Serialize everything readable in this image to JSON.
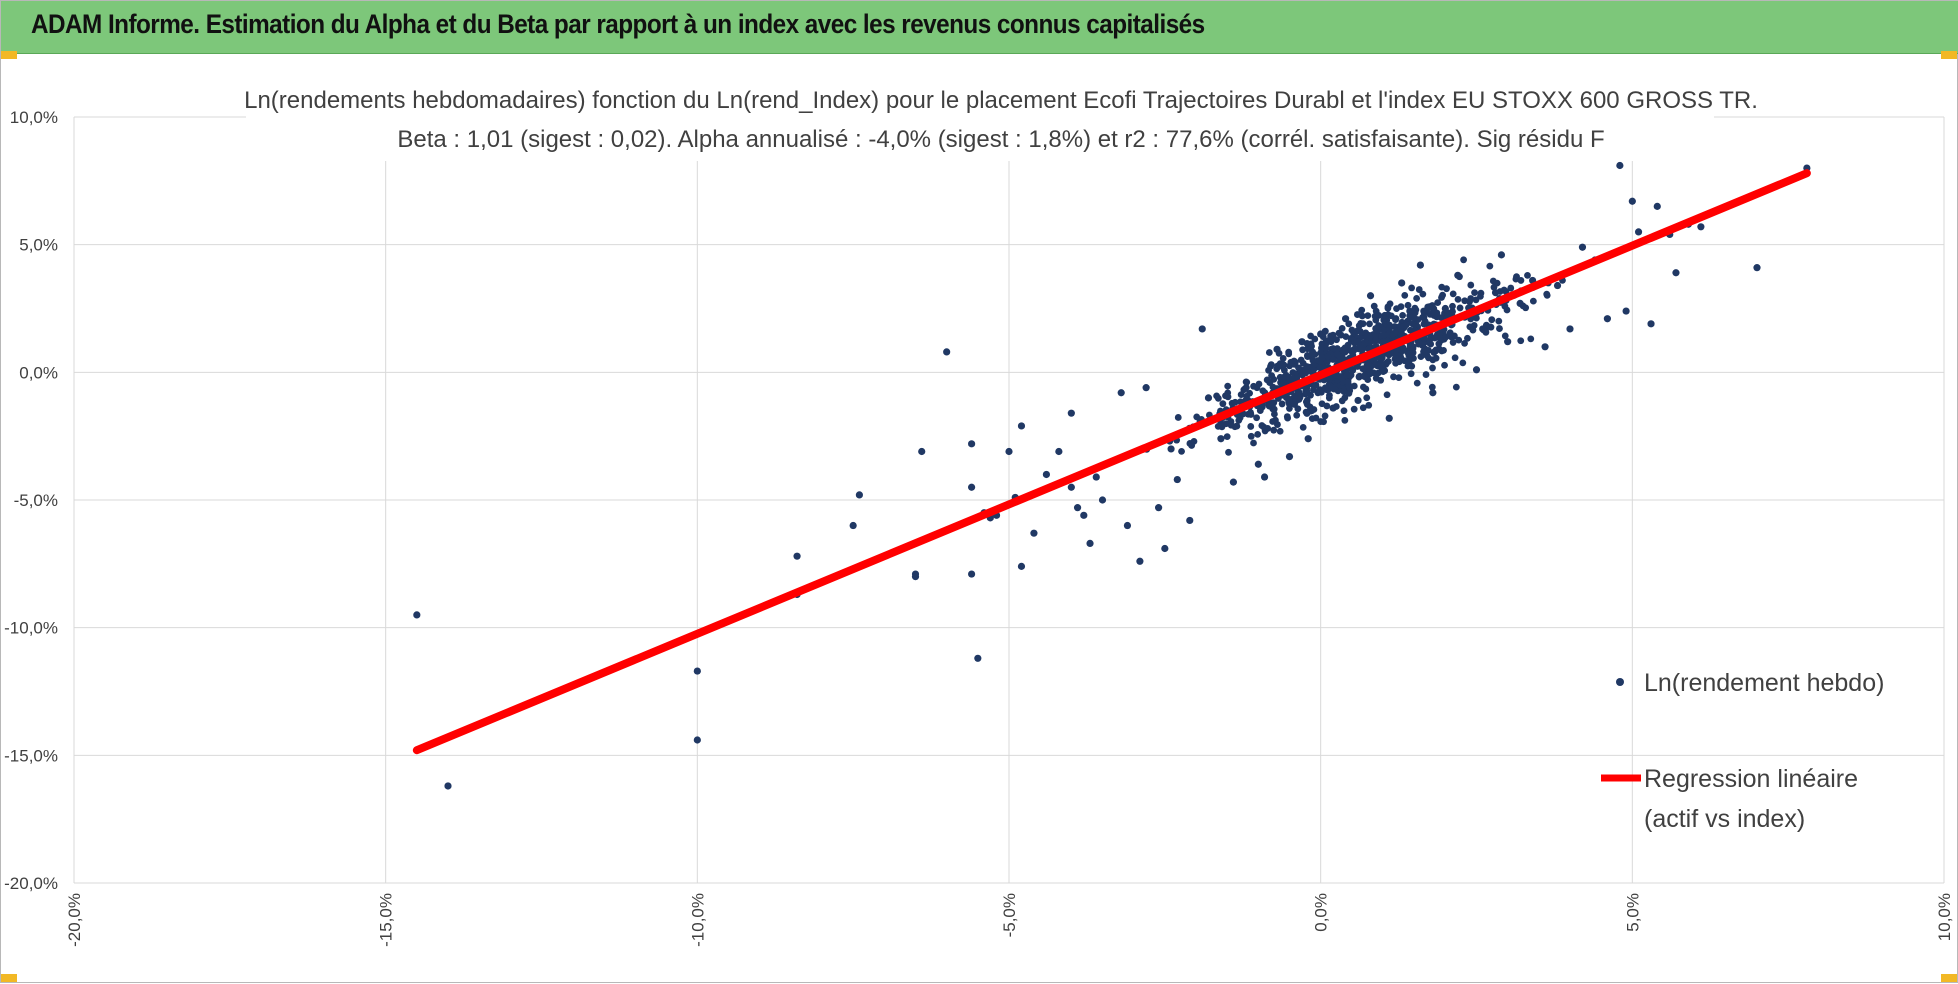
{
  "header": {
    "title": "ADAM Informe. Estimation du Alpha et du Beta par rapport à un index avec les revenus connus capitalisés"
  },
  "colors": {
    "header_bg": "#7dc77a",
    "points": "#203864",
    "regression": "#ff0000",
    "grid": "#d9d9d9",
    "handles": "#f2b825"
  },
  "chart_data": {
    "type": "scatter",
    "title_line1": "Ln(rendements hebdomadaires) fonction du Ln(rend_Index) pour le placement Ecofi Trajectoires Durabl et l'index EU STOXX 600 GROSS TR.",
    "title_line2": "Beta : 1,01 (sigest : 0,02). Alpha annualisé : -4,0% (sigest : 1,8%) et r2 : 77,6% (corrél. satisfaisante). Sig résidu F",
    "xlim": [
      -20,
      10
    ],
    "ylim": [
      -20,
      10
    ],
    "x_tick_labels": [
      "-20,0%",
      "-15,0%",
      "-10,0%",
      "-5,0%",
      "0,0%",
      "5,0%",
      "10,0%"
    ],
    "y_tick_labels": [
      "10,0%",
      "5,0%",
      "0,0%",
      "-5,0%",
      "-10,0%",
      "-15,0%",
      "-20,0%"
    ],
    "grid": true,
    "legend_position": "right",
    "legend_line2_of_regression": "(actif vs index)",
    "series": [
      {
        "name": "Ln(rendement hebdo)",
        "type": "scatter",
        "points": [
          [
            -14.5,
            -9.5
          ],
          [
            -14.0,
            -16.2
          ],
          [
            -10.0,
            -11.7
          ],
          [
            -10.0,
            -14.4
          ],
          [
            -8.4,
            -7.2
          ],
          [
            -8.4,
            -8.7
          ],
          [
            -7.5,
            -6.0
          ],
          [
            -7.4,
            -4.8
          ],
          [
            -6.5,
            -7.9
          ],
          [
            -6.5,
            -8.0
          ],
          [
            -6.4,
            -3.1
          ],
          [
            -6.0,
            0.8
          ],
          [
            -5.6,
            -2.8
          ],
          [
            -5.6,
            -4.5
          ],
          [
            -5.6,
            -7.9
          ],
          [
            -5.5,
            -11.2
          ],
          [
            -5.4,
            -5.5
          ],
          [
            -5.3,
            -5.7
          ],
          [
            -5.2,
            -5.6
          ],
          [
            -5.0,
            -3.1
          ],
          [
            -4.9,
            -4.9
          ],
          [
            -4.8,
            -2.1
          ],
          [
            -4.8,
            -7.6
          ],
          [
            -4.6,
            -6.3
          ],
          [
            -4.4,
            -4.0
          ],
          [
            -4.2,
            -3.1
          ],
          [
            -4.0,
            -1.6
          ],
          [
            -4.0,
            -4.5
          ],
          [
            -3.9,
            -5.3
          ],
          [
            -3.8,
            -5.6
          ],
          [
            -3.7,
            -6.7
          ],
          [
            -3.6,
            -4.1
          ],
          [
            -3.5,
            -5.0
          ],
          [
            -3.2,
            -0.8
          ],
          [
            -3.1,
            -6.0
          ],
          [
            -2.9,
            -7.4
          ],
          [
            -2.8,
            -0.6
          ],
          [
            -2.6,
            -5.3
          ],
          [
            -2.5,
            -6.9
          ],
          [
            -2.4,
            -3.0
          ],
          [
            -2.3,
            -4.2
          ],
          [
            -2.1,
            -5.8
          ],
          [
            -1.9,
            1.7
          ],
          [
            -1.8,
            -1.0
          ],
          [
            -1.6,
            -2.6
          ],
          [
            -1.4,
            -4.3
          ],
          [
            -1.2,
            -1.1
          ],
          [
            -1.0,
            -3.6
          ],
          [
            -0.9,
            -4.1
          ],
          [
            -0.7,
            0.9
          ],
          [
            -0.5,
            -3.3
          ],
          [
            -0.3,
            1.2
          ],
          [
            -0.2,
            -2.6
          ],
          [
            0.0,
            1.5
          ],
          [
            0.2,
            -1.4
          ],
          [
            0.4,
            2.1
          ],
          [
            0.6,
            -1.1
          ],
          [
            0.8,
            3.0
          ],
          [
            1.1,
            -1.8
          ],
          [
            1.3,
            3.5
          ],
          [
            1.6,
            4.2
          ],
          [
            1.8,
            -0.8
          ],
          [
            2.0,
            2.5
          ],
          [
            2.2,
            3.8
          ],
          [
            2.5,
            0.1
          ],
          [
            2.6,
            1.7
          ],
          [
            2.9,
            4.6
          ],
          [
            3.0,
            1.2
          ],
          [
            3.2,
            2.7
          ],
          [
            3.4,
            3.6
          ],
          [
            3.6,
            1.0
          ],
          [
            3.8,
            3.4
          ],
          [
            4.0,
            1.7
          ],
          [
            4.2,
            4.9
          ],
          [
            4.4,
            4.4
          ],
          [
            4.6,
            2.1
          ],
          [
            4.8,
            8.1
          ],
          [
            4.9,
            2.4
          ],
          [
            5.0,
            6.7
          ],
          [
            5.1,
            5.5
          ],
          [
            5.3,
            1.9
          ],
          [
            5.4,
            6.5
          ],
          [
            5.6,
            5.4
          ],
          [
            5.7,
            3.9
          ],
          [
            5.9,
            5.8
          ],
          [
            6.1,
            5.7
          ],
          [
            7.0,
            4.1
          ],
          [
            7.8,
            8.0
          ]
        ],
        "cloud_note": ""
      },
      {
        "name": "Regression linéaire",
        "type": "line",
        "points": [
          [
            -14.5,
            -14.8
          ],
          [
            7.8,
            7.8
          ]
        ]
      }
    ]
  }
}
